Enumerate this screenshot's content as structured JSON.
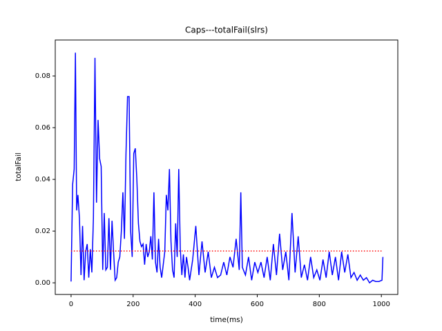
{
  "chart_data": {
    "type": "line",
    "title": "Caps---totalFail(slrs)",
    "x_label": "time(ms)",
    "y_label": "totalFail",
    "x": [
      0,
      5,
      10,
      14,
      18,
      22,
      27,
      32,
      37,
      42,
      47,
      52,
      57,
      62,
      67,
      72,
      77,
      82,
      87,
      92,
      97,
      102,
      107,
      112,
      117,
      122,
      127,
      132,
      137,
      142,
      147,
      152,
      157,
      162,
      167,
      172,
      177,
      182,
      187,
      192,
      197,
      202,
      207,
      212,
      217,
      222,
      227,
      232,
      237,
      242,
      247,
      252,
      257,
      262,
      267,
      272,
      277,
      282,
      287,
      292,
      297,
      302,
      307,
      312,
      317,
      322,
      327,
      332,
      337,
      342,
      347,
      352,
      357,
      362,
      367,
      372,
      377,
      382,
      392,
      402,
      412,
      422,
      432,
      442,
      452,
      462,
      472,
      482,
      492,
      502,
      512,
      522,
      532,
      542,
      547,
      552,
      562,
      572,
      582,
      592,
      602,
      612,
      622,
      632,
      642,
      652,
      662,
      672,
      682,
      692,
      702,
      712,
      722,
      732,
      742,
      752,
      762,
      772,
      782,
      792,
      802,
      812,
      822,
      832,
      842,
      852,
      862,
      872,
      882,
      892,
      902,
      912,
      922,
      932,
      942,
      952,
      962,
      972,
      982,
      992,
      1002,
      1005
    ],
    "values": [
      0.0005,
      0.038,
      0.044,
      0.089,
      0.028,
      0.034,
      0.025,
      0.003,
      0.022,
      0.001,
      0.012,
      0.015,
      0.002,
      0.013,
      0.004,
      0.025,
      0.087,
      0.031,
      0.063,
      0.048,
      0.045,
      0.005,
      0.027,
      0.005,
      0.006,
      0.025,
      0.005,
      0.024,
      0.012,
      0.001,
      0.002,
      0.008,
      0.01,
      0.02,
      0.035,
      0.017,
      0.05,
      0.072,
      0.072,
      0.02,
      0.01,
      0.05,
      0.052,
      0.04,
      0.023,
      0.016,
      0.014,
      0.015,
      0.007,
      0.015,
      0.01,
      0.012,
      0.018,
      0.009,
      0.035,
      0.008,
      0.004,
      0.017,
      0.006,
      0.002,
      0.007,
      0.012,
      0.034,
      0.028,
      0.044,
      0.016,
      0.005,
      0.002,
      0.023,
      0.01,
      0.044,
      0.013,
      0.003,
      0.011,
      0.002,
      0.01,
      0.006,
      0.001,
      0.009,
      0.022,
      0.003,
      0.016,
      0.004,
      0.012,
      0.002,
      0.006,
      0.002,
      0.003,
      0.008,
      0.003,
      0.01,
      0.006,
      0.017,
      0.005,
      0.035,
      0.006,
      0.003,
      0.01,
      0.001,
      0.008,
      0.004,
      0.008,
      0.002,
      0.01,
      0.001,
      0.015,
      0.003,
      0.019,
      0.005,
      0.012,
      0.001,
      0.027,
      0.004,
      0.018,
      0.002,
      0.007,
      0.001,
      0.01,
      0.002,
      0.005,
      0.001,
      0.009,
      0.002,
      0.012,
      0.003,
      0.01,
      0.001,
      0.012,
      0.004,
      0.011,
      0.002,
      0.004,
      0.001,
      0.003,
      0.001,
      0.002,
      0.0,
      0.001,
      0.0005,
      0.0005,
      0.001,
      0.01
    ],
    "color": "blue",
    "hline": {
      "y": 0.0123,
      "x": [
        0,
        1005
      ],
      "color": "red",
      "style": "dotted"
    },
    "xlim": [
      -51,
      1053
    ],
    "ylim": [
      -0.0045,
      0.0939
    ],
    "xticks": [
      0,
      200,
      400,
      600,
      800,
      1000
    ],
    "yticks": [
      {
        "value": 0,
        "label": "0.00"
      },
      {
        "value": 0.02,
        "label": "0.02"
      },
      {
        "value": 0.04,
        "label": "0.04"
      },
      {
        "value": 0.06,
        "label": "0.06"
      },
      {
        "value": 0.08,
        "label": "0.08"
      }
    ]
  }
}
